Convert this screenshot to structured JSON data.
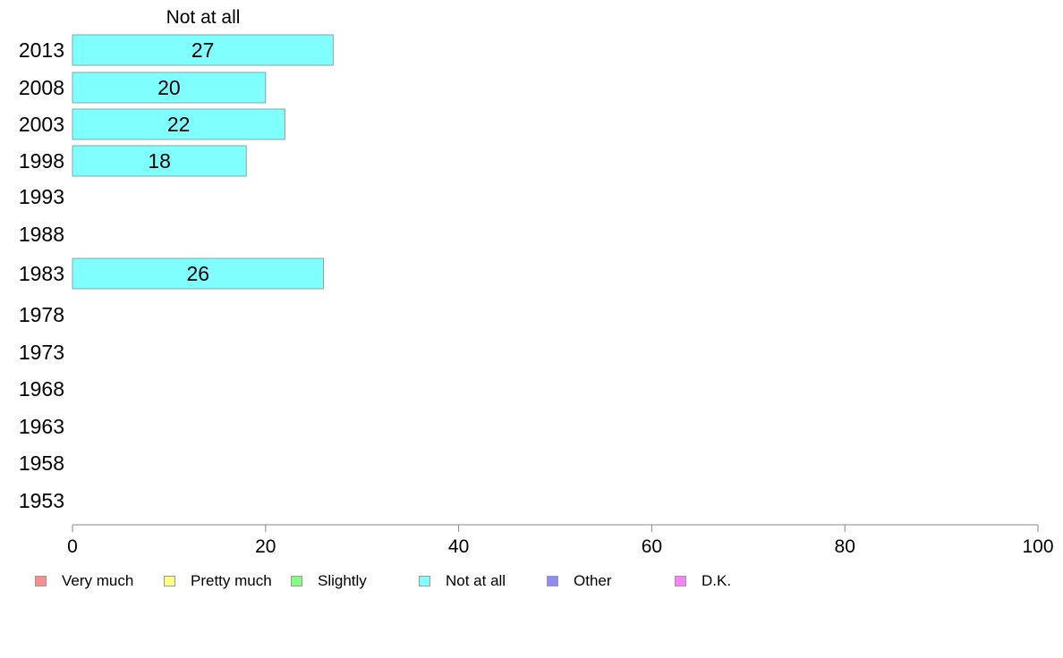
{
  "chart_data": {
    "type": "bar",
    "orientation": "horizontal",
    "title": "Not at all",
    "categories": [
      "2013",
      "2008",
      "2003",
      "1998",
      "1993",
      "1988",
      "1983",
      "1978",
      "1973",
      "1968",
      "1963",
      "1958",
      "1953"
    ],
    "series": [
      {
        "name": "Not at all",
        "color": "#80ffff",
        "values": [
          27,
          20,
          22,
          18,
          null,
          null,
          26,
          null,
          null,
          null,
          null,
          null,
          null
        ],
        "labels": [
          "27",
          "20",
          "22",
          "18",
          "",
          "",
          "26",
          "",
          "",
          "",
          "",
          "",
          ""
        ]
      }
    ],
    "xlim": [
      0,
      100
    ],
    "xticks": [
      "0",
      "20",
      "40",
      "60",
      "80",
      "100"
    ],
    "xlabel": "",
    "ylabel": "",
    "grid": false,
    "legend_position": "bottom"
  },
  "legend": [
    {
      "label": "Very much",
      "color": "#ff8c8c"
    },
    {
      "label": "Pretty much",
      "color": "#ffff80"
    },
    {
      "label": "Slightly",
      "color": "#80ff80"
    },
    {
      "label": "Not at all",
      "color": "#80ffff"
    },
    {
      "label": "Other",
      "color": "#8c8cff"
    },
    {
      "label": "D.K.",
      "color": "#ff80ff"
    }
  ]
}
